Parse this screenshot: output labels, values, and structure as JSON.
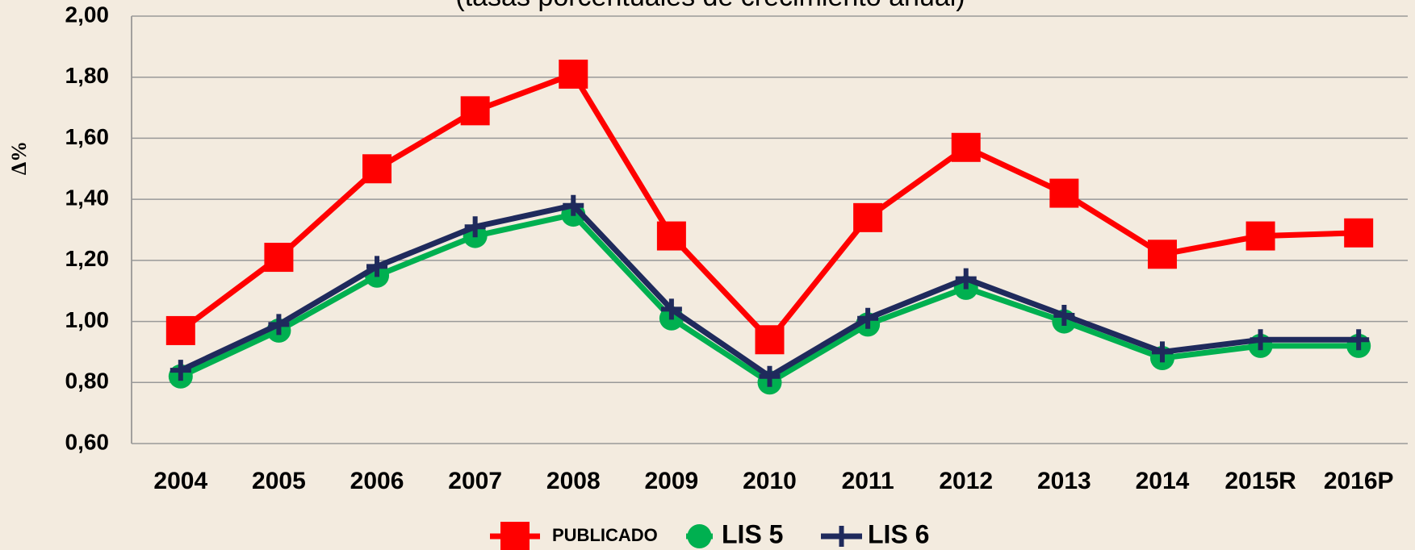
{
  "chart_data": {
    "type": "line",
    "subtitle": "(tasas porcentuales de crecimiento anual)",
    "y_label": "Δ%",
    "categories": [
      "2004",
      "2005",
      "2006",
      "2007",
      "2008",
      "2009",
      "2010",
      "2011",
      "2012",
      "2013",
      "2014",
      "2015R",
      "2016P"
    ],
    "series": [
      {
        "name": "PUBLICADO",
        "color": "#ff0000",
        "marker": "square",
        "values": [
          0.97,
          1.21,
          1.5,
          1.69,
          1.81,
          1.28,
          0.94,
          1.34,
          1.57,
          1.42,
          1.22,
          1.28,
          1.29
        ]
      },
      {
        "name": "LIS 5",
        "color": "#00b050",
        "marker": "circle",
        "values": [
          0.82,
          0.97,
          1.15,
          1.28,
          1.35,
          1.01,
          0.8,
          0.99,
          1.11,
          1.0,
          0.88,
          0.92,
          0.92
        ]
      },
      {
        "name": "LIS 6",
        "color": "#1f2a5c",
        "marker": "cross",
        "values": [
          0.84,
          0.99,
          1.18,
          1.31,
          1.38,
          1.04,
          0.82,
          1.01,
          1.14,
          1.02,
          0.9,
          0.94,
          0.94
        ]
      }
    ],
    "ylim": [
      0.6,
      2.0
    ],
    "yticks": [
      {
        "value": 0.6,
        "label": "0,60"
      },
      {
        "value": 0.8,
        "label": "0,80"
      },
      {
        "value": 1.0,
        "label": "1,00"
      },
      {
        "value": 1.2,
        "label": "1,20"
      },
      {
        "value": 1.4,
        "label": "1,40"
      },
      {
        "value": 1.6,
        "label": "1,60"
      },
      {
        "value": 1.8,
        "label": "1,80"
      },
      {
        "value": 2.0,
        "label": "2,00"
      }
    ],
    "grid": true,
    "legend": "bottom"
  }
}
